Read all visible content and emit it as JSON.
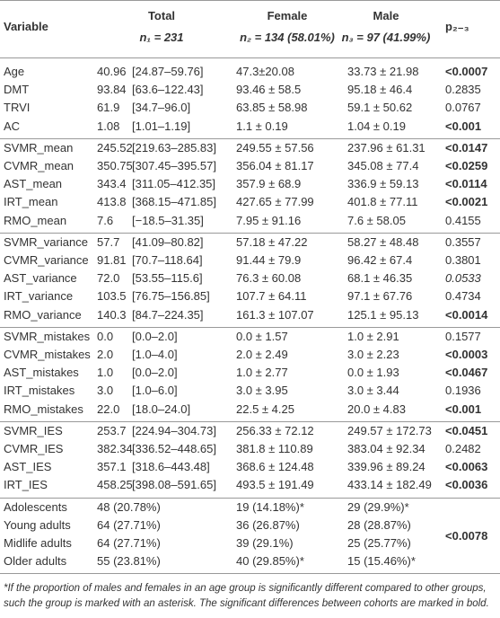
{
  "header": {
    "variable": "Variable",
    "columns": [
      {
        "title": "Total",
        "sample": "n₁ = 231"
      },
      {
        "title": "Female",
        "sample": "n₂ = 134 (58.01%)"
      },
      {
        "title": "Male",
        "sample": "n₃ = 97 (41.99%)"
      }
    ],
    "p": "p₂₋₃"
  },
  "groups": [
    {
      "rows": [
        {
          "cells": [
            "Age",
            "40.96",
            "[24.87–59.76]",
            "47.3±20.08",
            "33.73 ± 21.98"
          ],
          "p": "<0.0007",
          "p_style": "bold"
        },
        {
          "cells": [
            "DMT",
            "93.84",
            "[63.6–122.43]",
            "93.46 ± 58.5",
            "95.18 ± 46.4"
          ],
          "p": "0.2835"
        },
        {
          "cells": [
            "TRVI",
            "61.9",
            "[34.7–96.0]",
            "63.85 ± 58.98",
            "59.1 ± 50.62"
          ],
          "p": "0.0767"
        },
        {
          "cells": [
            "AC",
            "1.08",
            "[1.01–1.19]",
            "1.1 ± 0.19",
            "1.04 ± 0.19"
          ],
          "p": "<0.001",
          "p_style": "bold"
        }
      ]
    },
    {
      "rows": [
        {
          "cells": [
            "SVMR_mean",
            "245.52",
            "[219.63–285.83]",
            "249.55 ± 57.56",
            "237.96 ± 61.31"
          ],
          "p": "<0.0147",
          "p_style": "bold"
        },
        {
          "cells": [
            "CVMR_mean",
            "350.75",
            "[307.45–395.57]",
            "356.04 ± 81.17",
            "345.08 ± 77.4"
          ],
          "p": "<0.0259",
          "p_style": "bold"
        },
        {
          "cells": [
            "AST_mean",
            "343.4",
            "[311.05–412.35]",
            "357.9 ± 68.9",
            "336.9 ± 59.13"
          ],
          "p": "<0.0114",
          "p_style": "bold"
        },
        {
          "cells": [
            "IRT_mean",
            "413.8",
            "[368.15–471.85]",
            "427.65 ± 77.99",
            "401.8 ± 77.11"
          ],
          "p": "<0.0021",
          "p_style": "bold"
        },
        {
          "cells": [
            "RMO_mean",
            "7.6",
            "[−18.5–31.35]",
            "7.95 ± 91.16",
            "7.6 ± 58.05"
          ],
          "p": "0.4155"
        }
      ]
    },
    {
      "rows": [
        {
          "cells": [
            "SVMR_variance",
            "57.7",
            "[41.09–80.82]",
            "57.18 ± 47.22",
            "58.27 ± 48.48"
          ],
          "p": "0.3557"
        },
        {
          "cells": [
            "CVMR_variance",
            "91.81",
            "[70.7–118.64]",
            "91.44 ± 79.9",
            "96.42 ± 67.4"
          ],
          "p": "0.3801"
        },
        {
          "cells": [
            "AST_variance",
            "72.0",
            "[53.55–115.6]",
            "76.3 ± 60.08",
            "68.1 ± 46.35"
          ],
          "p": "0.0533",
          "p_style": "italic"
        },
        {
          "cells": [
            "IRT_variance",
            "103.5",
            "[76.75–156.85]",
            "107.7 ± 64.11",
            "97.1 ± 67.76"
          ],
          "p": "0.4734"
        },
        {
          "cells": [
            "RMO_variance",
            "140.3",
            "[84.7–224.35]",
            "161.3 ± 107.07",
            "125.1 ± 95.13"
          ],
          "p": "<0.0014",
          "p_style": "bold"
        }
      ]
    },
    {
      "rows": [
        {
          "cells": [
            "SVMR_mistakes",
            "0.0",
            "[0.0–2.0]",
            "0.0 ± 1.57",
            "1.0 ± 2.91"
          ],
          "p": "0.1577"
        },
        {
          "cells": [
            "CVMR_mistakes",
            "2.0",
            "[1.0–4.0]",
            "2.0 ± 2.49",
            "3.0 ± 2.23"
          ],
          "p": "<0.0003",
          "p_style": "bold"
        },
        {
          "cells": [
            "AST_mistakes",
            "1.0",
            "[0.0–2.0]",
            "1.0 ± 2.77",
            "0.0 ± 1.93"
          ],
          "p": "<0.0467",
          "p_style": "bold"
        },
        {
          "cells": [
            "IRT_mistakes",
            "3.0",
            "[1.0–6.0]",
            "3.0 ± 3.95",
            "3.0 ± 3.44"
          ],
          "p": "0.1936"
        },
        {
          "cells": [
            "RMO_mistakes",
            "22.0",
            "[18.0–24.0]",
            "22.5 ± 4.25",
            "20.0 ± 4.83"
          ],
          "p": "<0.001",
          "p_style": "bold"
        }
      ]
    },
    {
      "rows": [
        {
          "cells": [
            "SVMR_IES",
            "253.7",
            "[224.94–304.73]",
            "256.33 ± 72.12",
            "249.57 ± 172.73"
          ],
          "p": "<0.0451",
          "p_style": "bold"
        },
        {
          "cells": [
            "CVMR_IES",
            "382.34",
            "[336.52–448.65]",
            "381.8 ± 110.89",
            "383.04 ± 92.34"
          ],
          "p": "0.2482"
        },
        {
          "cells": [
            "AST_IES",
            "357.1",
            "[318.6–443.48]",
            "368.6 ± 124.48",
            "339.96 ± 89.24"
          ],
          "p": "<0.0063",
          "p_style": "bold"
        },
        {
          "cells": [
            "IRT_IES",
            "458.25",
            "[398.08–591.65]",
            "493.5 ± 191.49",
            "433.14 ± 182.49"
          ],
          "p": "<0.0036",
          "p_style": "bold"
        }
      ]
    },
    {
      "rows": [
        {
          "cells": [
            "Adolescents",
            "48 (20.78%)",
            "19 (14.18%)*",
            "29 (29.9%)*"
          ]
        },
        {
          "cells": [
            "Young adults",
            "64 (27.71%)",
            "36 (26.87%)",
            "28 (28.87%)"
          ]
        },
        {
          "cells": [
            "Midlife adults",
            "64 (27.71%)",
            "39 (29.1%)",
            "25 (25.77%)"
          ]
        },
        {
          "cells": [
            "Older adults",
            "55 (23.81%)",
            "40 (29.85%)*",
            "15 (15.46%)*"
          ]
        }
      ],
      "p": "<0.0078",
      "p_style": "bold"
    }
  ],
  "footnote": "*If the proportion of males and females in an age group is significantly different compared to other groups, such the group is marked with an asterisk. The significant differences between cohorts are marked in bold."
}
